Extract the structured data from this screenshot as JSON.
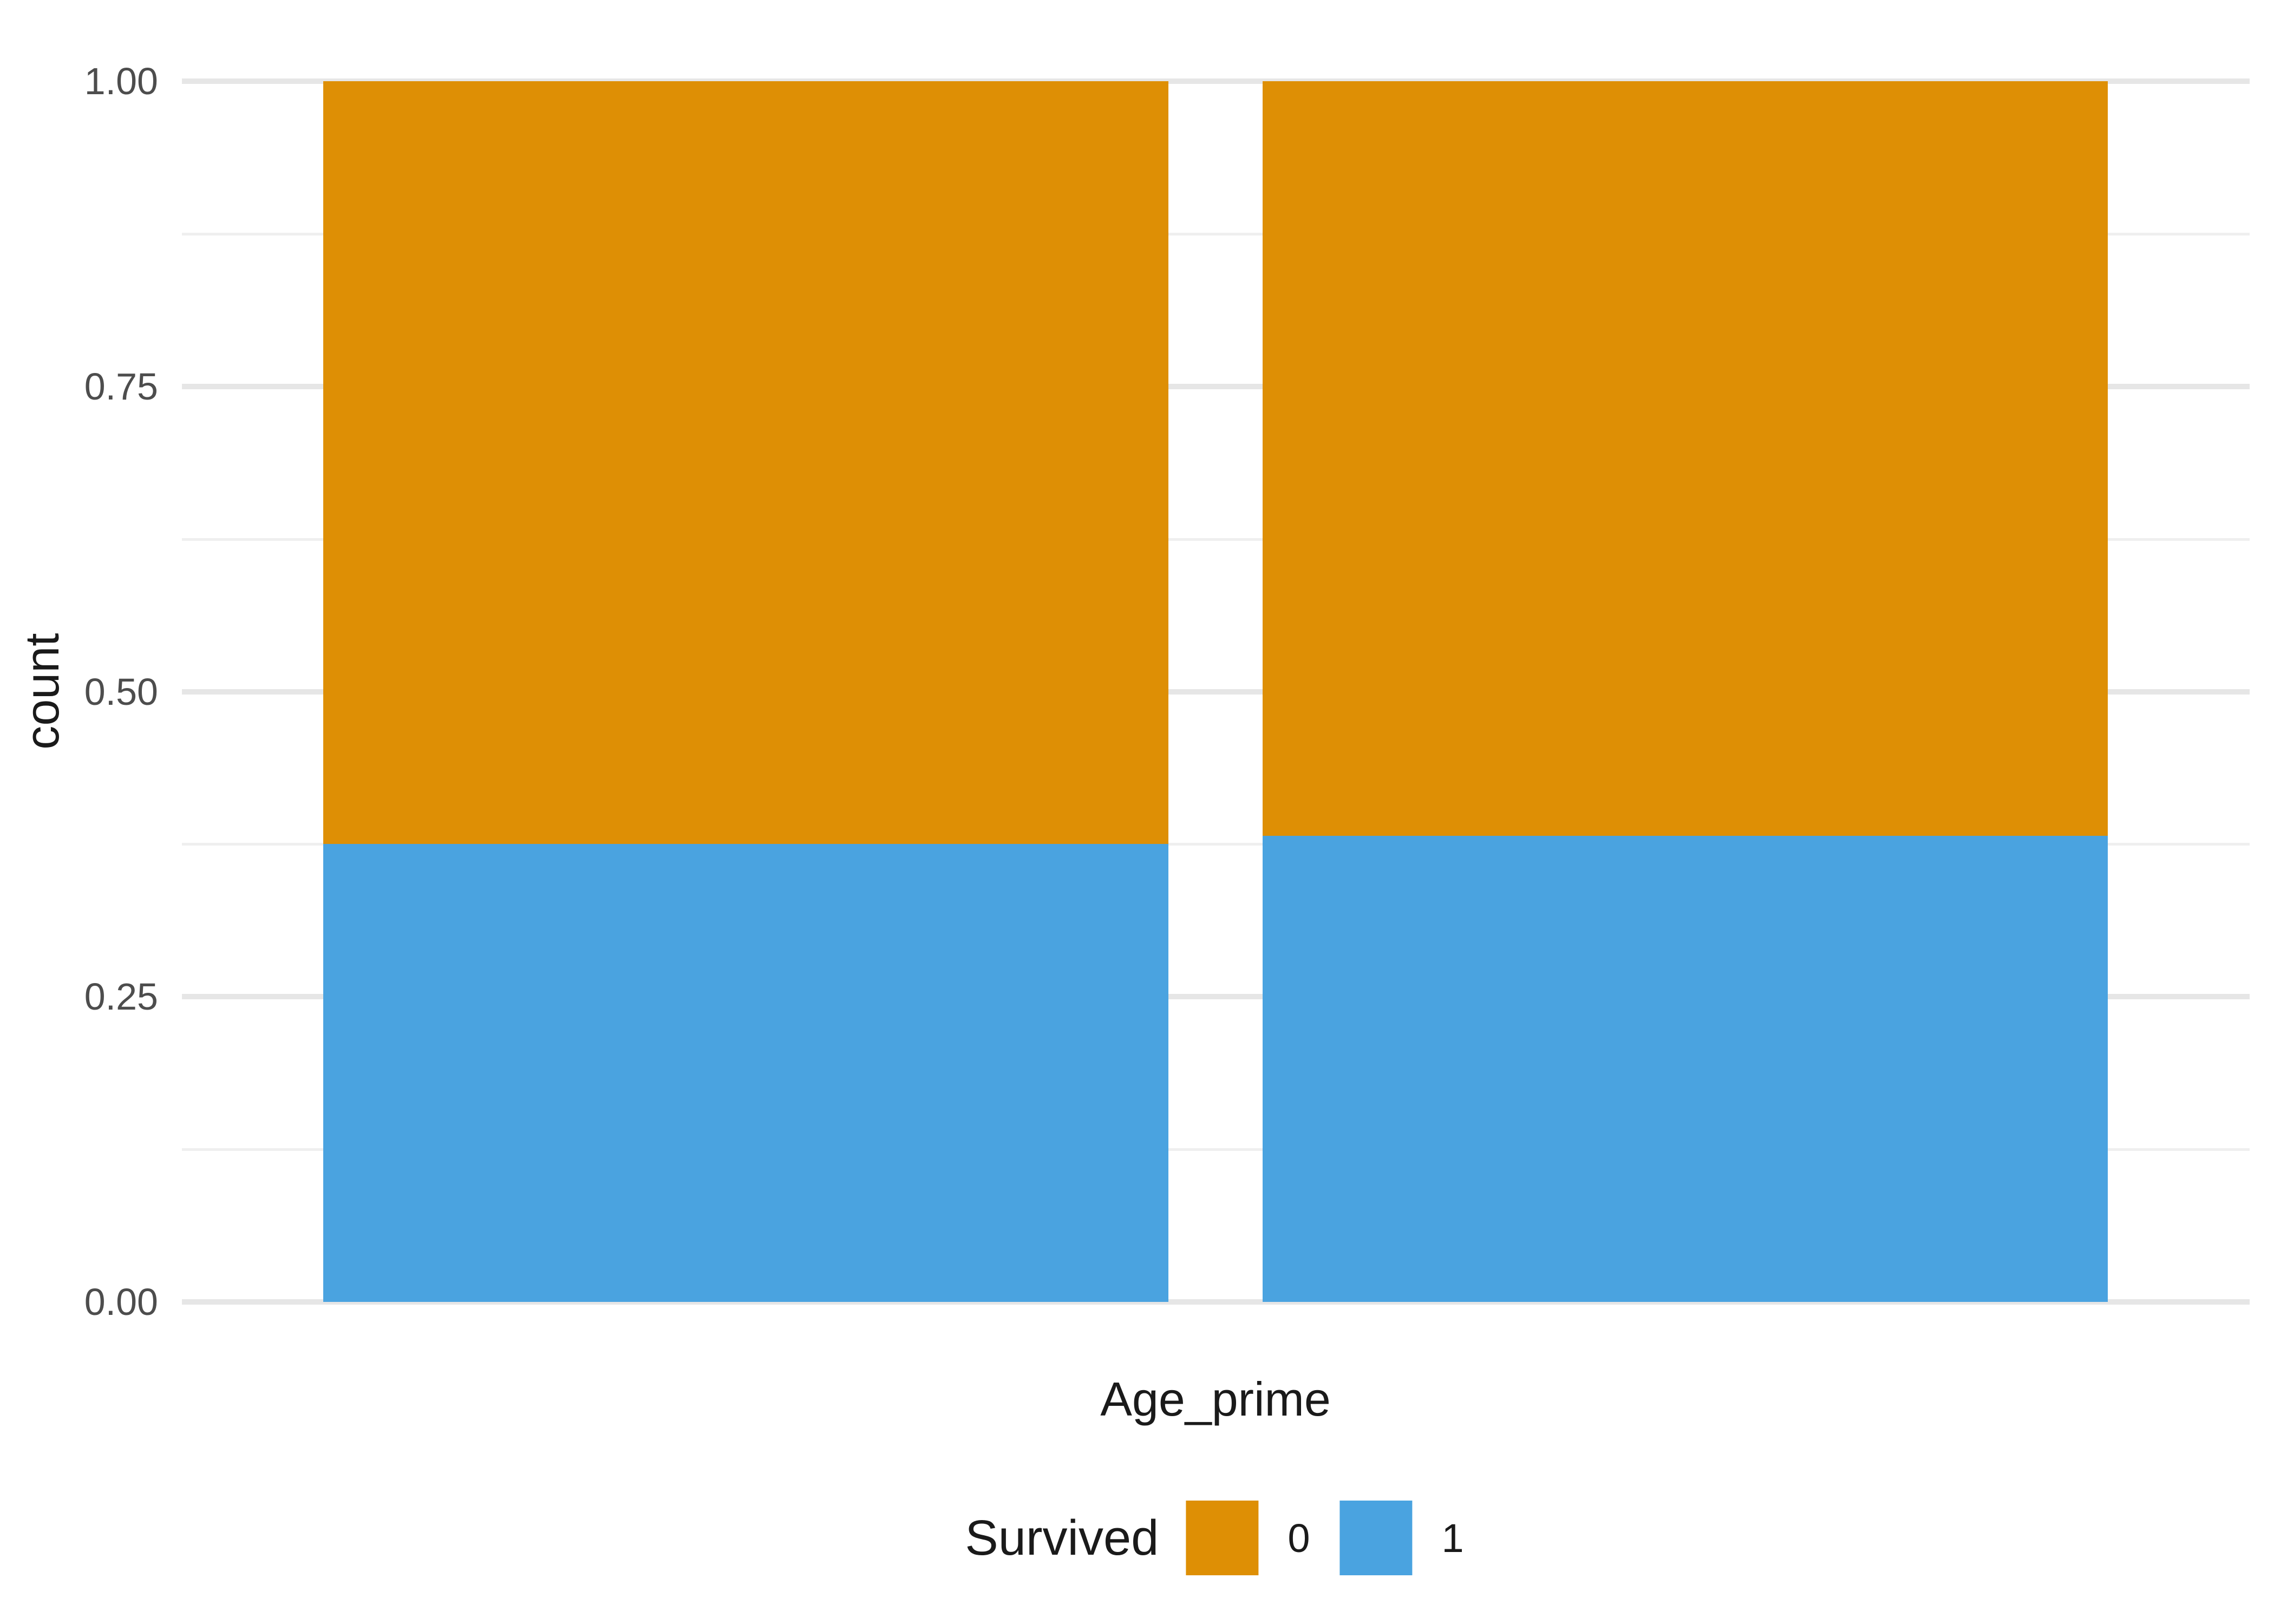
{
  "chart_data": {
    "type": "bar",
    "subtype": "stacked_fill_proportion",
    "title": "",
    "xlabel": "Age_prime",
    "ylabel": "count",
    "categories": [
      "",
      ""
    ],
    "series": [
      {
        "name": "0",
        "color": "#DE8F05",
        "values": [
          0.625,
          0.618
        ]
      },
      {
        "name": "1",
        "color": "#4AA3E0",
        "values": [
          0.375,
          0.382
        ]
      }
    ],
    "stack_order_top_to_bottom": [
      "0",
      "1"
    ],
    "ylim": [
      0,
      1
    ],
    "yticks": [
      0,
      0.25,
      0.5,
      0.75,
      1
    ],
    "ytick_labels": [
      "0.00",
      "0.25",
      "0.50",
      "0.75",
      "1.00"
    ],
    "xtick_labels": [],
    "grid": {
      "major": true,
      "minor": true,
      "major_color": "#E6E6E6",
      "minor_color": "#EFEFEF"
    },
    "background": "#FFFFFF",
    "tick_label_color": "#4D4D4D",
    "legend": {
      "title": "Survived",
      "position": "bottom",
      "entries": [
        "0",
        "1"
      ]
    }
  }
}
